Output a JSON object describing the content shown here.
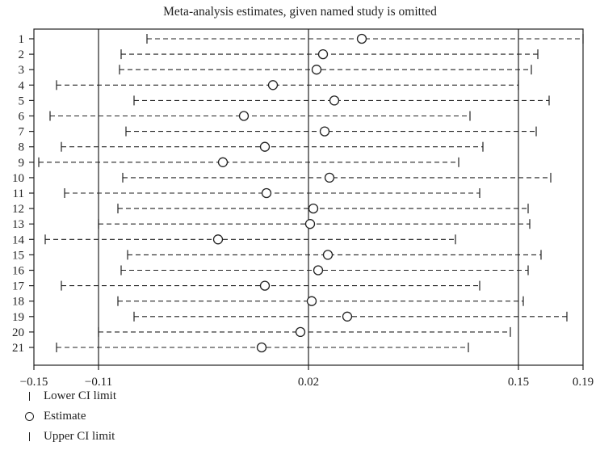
{
  "chart_data": {
    "type": "forest",
    "title": "Meta-analysis estimates, given named study is omitted",
    "xlabel": "",
    "ylabel": "",
    "xlim": [
      -0.15,
      0.19
    ],
    "x_ticks": [
      -0.15,
      -0.11,
      0.02,
      0.15,
      0.19
    ],
    "x_tick_labels": [
      "−0.15",
      "−0.11",
      "0.02",
      "0.15",
      "0.19"
    ],
    "reference_lines": [
      -0.11,
      0.02,
      0.15
    ],
    "studies": [
      {
        "label": "1",
        "lower": -0.08,
        "estimate": 0.053,
        "upper": 0.19
      },
      {
        "label": "2",
        "lower": -0.096,
        "estimate": 0.029,
        "upper": 0.162
      },
      {
        "label": "3",
        "lower": -0.097,
        "estimate": 0.025,
        "upper": 0.158
      },
      {
        "label": "4",
        "lower": -0.136,
        "estimate": -0.002,
        "upper": 0.15
      },
      {
        "label": "5",
        "lower": -0.088,
        "estimate": 0.036,
        "upper": 0.169
      },
      {
        "label": "6",
        "lower": -0.14,
        "estimate": -0.02,
        "upper": 0.12
      },
      {
        "label": "7",
        "lower": -0.093,
        "estimate": 0.03,
        "upper": 0.161
      },
      {
        "label": "8",
        "lower": -0.133,
        "estimate": -0.007,
        "upper": 0.128
      },
      {
        "label": "9",
        "lower": -0.147,
        "estimate": -0.033,
        "upper": 0.113
      },
      {
        "label": "10",
        "lower": -0.095,
        "estimate": 0.033,
        "upper": 0.17
      },
      {
        "label": "11",
        "lower": -0.131,
        "estimate": -0.006,
        "upper": 0.126
      },
      {
        "label": "12",
        "lower": -0.098,
        "estimate": 0.023,
        "upper": 0.156
      },
      {
        "label": "13",
        "lower": -0.11,
        "estimate": 0.021,
        "upper": 0.157
      },
      {
        "label": "14",
        "lower": -0.143,
        "estimate": -0.036,
        "upper": 0.111
      },
      {
        "label": "15",
        "lower": -0.092,
        "estimate": 0.032,
        "upper": 0.164
      },
      {
        "label": "16",
        "lower": -0.096,
        "estimate": 0.026,
        "upper": 0.156
      },
      {
        "label": "17",
        "lower": -0.133,
        "estimate": -0.007,
        "upper": 0.126
      },
      {
        "label": "18",
        "lower": -0.098,
        "estimate": 0.022,
        "upper": 0.153
      },
      {
        "label": "19",
        "lower": -0.088,
        "estimate": 0.044,
        "upper": 0.18
      },
      {
        "label": "20",
        "lower": -0.11,
        "estimate": 0.015,
        "upper": 0.145
      },
      {
        "label": "21",
        "lower": -0.136,
        "estimate": -0.009,
        "upper": 0.119
      }
    ]
  },
  "legend": {
    "lower": "Lower CI limit",
    "estimate": "Estimate",
    "upper": "Upper CI limit"
  }
}
